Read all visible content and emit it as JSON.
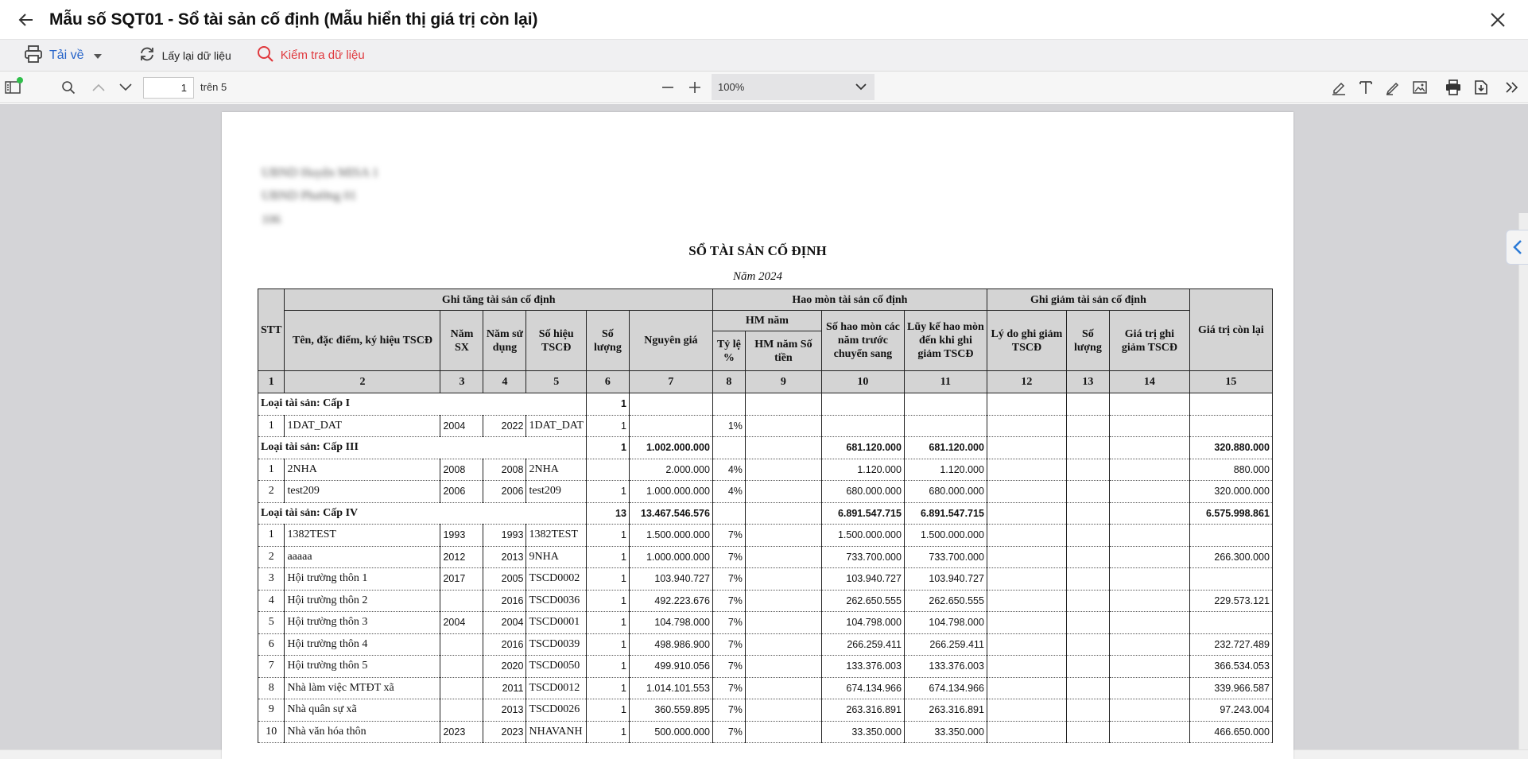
{
  "window": {
    "title": "Mẫu số SQT01 - Sổ tài sản cố định (Mẫu hiển thị giá trị còn lại)"
  },
  "actions": {
    "download_label": "Tải về",
    "reload_label": "Lấy lại dữ liệu",
    "check_label": "Kiểm tra dữ liệu"
  },
  "pdf_toolbar": {
    "page_value": "1",
    "page_total_label": "trên 5",
    "zoom_value": "100%"
  },
  "document": {
    "header_lines": [
      "UBND Huyện MISA 1",
      "UBND Phường 01",
      "106"
    ],
    "title": "SỔ TÀI SẢN CỐ ĐỊNH",
    "year_label": "Năm 2024",
    "headers": {
      "stt": "STT",
      "increase_group": "Ghi tăng tài sản cố định",
      "name": "Tên, đặc điểm, ký hiệu TSCĐ",
      "year_made": "Năm SX",
      "year_used": "Năm sử dụng",
      "code": "Số hiệu TSCĐ",
      "qty": "Số lượng",
      "original_price": "Nguyên giá",
      "depr_group": "Hao mòn tài sản cố định",
      "hm_year": "HM năm",
      "rate": "Tỷ lệ %",
      "hm_amount": "HM năm Số tiền",
      "carried": "Số hao mòn các năm trước chuyển sang",
      "accumulated": "Lũy kế hao mòn đến khi ghi giảm TSCĐ",
      "decrease_group": "Ghi giảm tài sản cố định",
      "reason": "Lý do ghi giảm TSCĐ",
      "dec_qty": "Số lượng",
      "dec_value": "Giá trị ghi giảm TSCĐ",
      "remaining": "Giá trị còn lại"
    },
    "index_row": [
      "1",
      "2",
      "3",
      "4",
      "5",
      "6",
      "7",
      "8",
      "9",
      "10",
      "11",
      "12",
      "13",
      "14",
      "15"
    ],
    "rows": [
      {
        "type": "group",
        "label": "Loại tài sản: Cấp I",
        "qty": "1",
        "price": "",
        "carried": "",
        "accum": "",
        "remain": ""
      },
      {
        "type": "item",
        "stt": "1",
        "name": "1DAT_DAT",
        "sx": "2004",
        "sd": "2022",
        "code": "1DAT_DAT",
        "qty": "1",
        "price": "",
        "rate": "1%",
        "carried": "",
        "accum": "",
        "remain": ""
      },
      {
        "type": "group",
        "label": "Loại tài sản: Cấp III",
        "qty": "1",
        "price": "1.002.000.000",
        "carried": "681.120.000",
        "accum": "681.120.000",
        "remain": "320.880.000"
      },
      {
        "type": "item",
        "stt": "1",
        "name": "2NHA",
        "sx": "2008",
        "sd": "2008",
        "code": "2NHA",
        "qty": "",
        "price": "2.000.000",
        "rate": "4%",
        "carried": "1.120.000",
        "accum": "1.120.000",
        "remain": "880.000"
      },
      {
        "type": "item",
        "stt": "2",
        "name": "test209",
        "sx": "2006",
        "sd": "2006",
        "code": "test209",
        "qty": "1",
        "price": "1.000.000.000",
        "rate": "4%",
        "carried": "680.000.000",
        "accum": "680.000.000",
        "remain": "320.000.000"
      },
      {
        "type": "group",
        "label": "Loại tài sản: Cấp IV",
        "qty": "13",
        "price": "13.467.546.576",
        "carried": "6.891.547.715",
        "accum": "6.891.547.715",
        "remain": "6.575.998.861"
      },
      {
        "type": "item",
        "stt": "1",
        "name": "1382TEST",
        "sx": "1993",
        "sd": "1993",
        "code": "1382TEST",
        "qty": "1",
        "price": "1.500.000.000",
        "rate": "7%",
        "carried": "1.500.000.000",
        "accum": "1.500.000.000",
        "remain": ""
      },
      {
        "type": "item",
        "stt": "2",
        "name": "aaaaa",
        "sx": "2012",
        "sd": "2013",
        "code": "9NHA",
        "qty": "1",
        "price": "1.000.000.000",
        "rate": "7%",
        "carried": "733.700.000",
        "accum": "733.700.000",
        "remain": "266.300.000"
      },
      {
        "type": "item",
        "stt": "3",
        "name": "Hội trường thôn 1",
        "sx": "2017",
        "sd": "2005",
        "code": "TSCD0002",
        "qty": "1",
        "price": "103.940.727",
        "rate": "7%",
        "carried": "103.940.727",
        "accum": "103.940.727",
        "remain": ""
      },
      {
        "type": "item",
        "stt": "4",
        "name": "Hội trường thôn 2",
        "sx": "",
        "sd": "2016",
        "code": "TSCD0036",
        "qty": "1",
        "price": "492.223.676",
        "rate": "7%",
        "carried": "262.650.555",
        "accum": "262.650.555",
        "remain": "229.573.121"
      },
      {
        "type": "item",
        "stt": "5",
        "name": "Hội trường thôn 3",
        "sx": "2004",
        "sd": "2004",
        "code": "TSCD0001",
        "qty": "1",
        "price": "104.798.000",
        "rate": "7%",
        "carried": "104.798.000",
        "accum": "104.798.000",
        "remain": ""
      },
      {
        "type": "item",
        "stt": "6",
        "name": "Hội trường thôn 4",
        "sx": "",
        "sd": "2016",
        "code": "TSCD0039",
        "qty": "1",
        "price": "498.986.900",
        "rate": "7%",
        "carried": "266.259.411",
        "accum": "266.259.411",
        "remain": "232.727.489"
      },
      {
        "type": "item",
        "stt": "7",
        "name": "Hội trường thôn 5",
        "sx": "",
        "sd": "2020",
        "code": "TSCD0050",
        "qty": "1",
        "price": "499.910.056",
        "rate": "7%",
        "carried": "133.376.003",
        "accum": "133.376.003",
        "remain": "366.534.053"
      },
      {
        "type": "item",
        "stt": "8",
        "name": "Nhà làm việc MTĐT xã",
        "sx": "",
        "sd": "2011",
        "code": "TSCD0012",
        "qty": "1",
        "price": "1.014.101.553",
        "rate": "7%",
        "carried": "674.134.966",
        "accum": "674.134.966",
        "remain": "339.966.587"
      },
      {
        "type": "item",
        "stt": "9",
        "name": "Nhà quân sự xã",
        "sx": "",
        "sd": "2013",
        "code": "TSCD0026",
        "qty": "1",
        "price": "360.559.895",
        "rate": "7%",
        "carried": "263.316.891",
        "accum": "263.316.891",
        "remain": "97.243.004"
      },
      {
        "type": "item",
        "stt": "10",
        "name": "Nhà văn hóa thôn",
        "sx": "2023",
        "sd": "2023",
        "code": "NHAVANH",
        "qty": "1",
        "price": "500.000.000",
        "rate": "7%",
        "carried": "33.350.000",
        "accum": "33.350.000",
        "remain": "466.650.000"
      }
    ]
  }
}
